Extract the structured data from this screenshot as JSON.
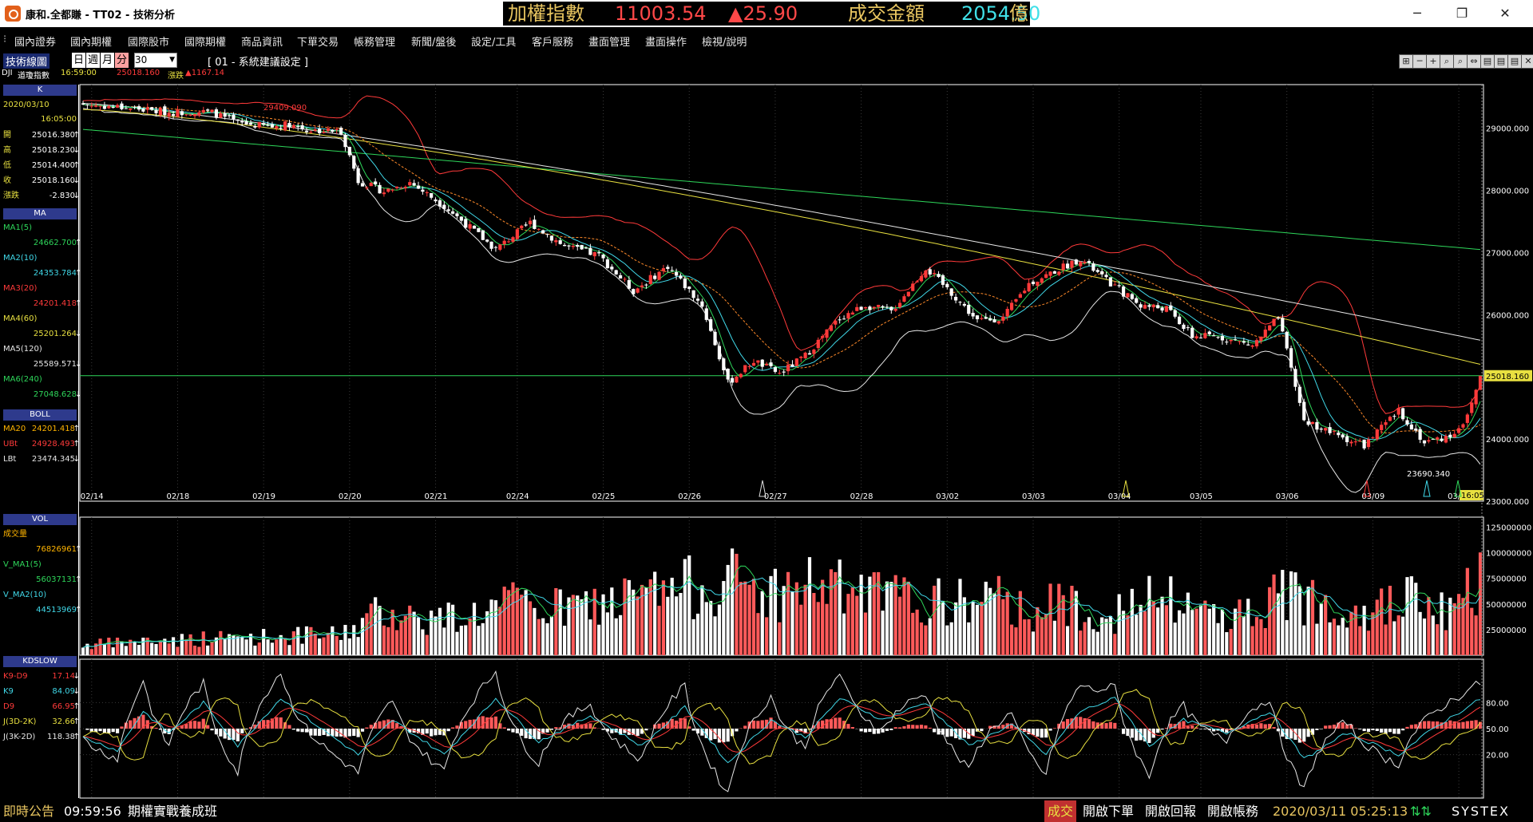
{
  "window": {
    "title": "康和.全都賺 - TT02 - 技術分析",
    "minimize": "─",
    "maximize": "❐",
    "close": "✕"
  },
  "ticker": {
    "label": "加權指數",
    "index": "11003.54",
    "change": "▲25.90",
    "turnover_label": "成交金額",
    "turnover": "2054.50",
    "unit": "億"
  },
  "menu": [
    "國內證券",
    "國內期權",
    "國際股市",
    "國際期權",
    "商品資訊",
    "下單交易",
    "帳務管理",
    "新聞/盤後",
    "設定/工具",
    "客戶服務",
    "畫面管理",
    "畫面操作",
    "檢視/說明"
  ],
  "toolbar": {
    "title": "技術線圖",
    "periods": [
      "日",
      "週",
      "月",
      "分"
    ],
    "count": "30",
    "setting": "[ 01 - 系統建議設定 ]"
  },
  "stock": {
    "code": "DJI",
    "name": "道瓊指數",
    "time": "16:59:00",
    "price": "25018.160",
    "change_label": "漲跌",
    "change": "▲1167.14"
  },
  "k_panel": {
    "title": "K",
    "date": "2020/03/10",
    "time": "16:05:00",
    "rows": [
      {
        "label": "開",
        "value": "25016.380",
        "arrow": "↑"
      },
      {
        "label": "高",
        "value": "25018.230",
        "arrow": "↓"
      },
      {
        "label": "低",
        "value": "25014.400",
        "arrow": "↑"
      },
      {
        "label": "收",
        "value": "25018.160",
        "arrow": "↓"
      },
      {
        "label": "漲跌",
        "value": "-2.830",
        "arrow": "↓"
      }
    ]
  },
  "ma_panel": {
    "title": "MA",
    "rows": [
      {
        "label": "MA1(5)",
        "value": "24662.700",
        "arrow": "↑",
        "color": "#2ed65a"
      },
      {
        "label": "MA2(10)",
        "value": "24353.784",
        "arrow": "↑",
        "color": "#40d8e8"
      },
      {
        "label": "MA3(20)",
        "value": "24201.418",
        "arrow": "↑",
        "color": "#ff3a3a"
      },
      {
        "label": "MA4(60)",
        "value": "25201.264",
        "arrow": "↓",
        "color": "#e8e040"
      },
      {
        "label": "MA5(120)",
        "value": "25589.571",
        "arrow": "↓",
        "color": "#e6e6e6"
      },
      {
        "label": "MA6(240)",
        "value": "27048.628",
        "arrow": "↓",
        "color": "#2ed65a"
      }
    ]
  },
  "boll_panel": {
    "title": "BOLL",
    "rows": [
      {
        "label": "MA20",
        "value": "24201.418",
        "arrow": "↑",
        "color": "#ffb400"
      },
      {
        "label": "UBt",
        "value": "24928.493",
        "arrow": "↑",
        "color": "#ff3a3a"
      },
      {
        "label": "LBt",
        "value": "23474.345",
        "arrow": "↓",
        "color": "#e6e6e6"
      }
    ]
  },
  "vol_panel": {
    "title": "VOL",
    "rows": [
      {
        "label": "成交量",
        "value": "76826961",
        "arrow": "↑",
        "color": "#ffb400"
      },
      {
        "label": "V_MA1(5)",
        "value": "56037131",
        "arrow": "↑",
        "color": "#2ed65a"
      },
      {
        "label": "V_MA2(10)",
        "value": "44513969",
        "arrow": "↑",
        "color": "#40d8e8"
      }
    ]
  },
  "kd_panel": {
    "title": "KDSLOW",
    "rows": [
      {
        "label": "K9-D9",
        "value": "17.14",
        "arrow": "↓",
        "color": "#ff3a3a"
      },
      {
        "label": "K9",
        "value": "84.09",
        "arrow": "↓",
        "color": "#40d8e8"
      },
      {
        "label": "D9",
        "value": "66.95",
        "arrow": "↑",
        "color": "#ff3a3a"
      },
      {
        "label": "J(3D-2K)",
        "value": "32.66",
        "arrow": "↑",
        "color": "#e8e040"
      },
      {
        "label": "J(3K-2D)",
        "value": "118.38",
        "arrow": "↑",
        "color": "#e6e6e6"
      }
    ]
  },
  "chart_data": {
    "type": "candlestick",
    "x_ticks": [
      "02/14",
      "02/18",
      "02/19",
      "02/20",
      "02/21",
      "02/24",
      "02/25",
      "02/26",
      "02/27",
      "02/28",
      "03/02",
      "03/03",
      "03/04",
      "03/05",
      "03/06",
      "03/09",
      "03/10"
    ],
    "price_axis": [
      "29000.000",
      "28000.000",
      "27000.000",
      "26000.000",
      "25018.160",
      "24000.000",
      "23000.000"
    ],
    "price_ylim": [
      23000,
      29700
    ],
    "high_label": "29409.090",
    "low_label": "23690.340",
    "last_price": "25018.160",
    "last_time": "16:05",
    "vol_axis": [
      "125000000",
      "100000000",
      "75000000",
      "50000000",
      "25000000"
    ],
    "vol_ylim": [
      0,
      130000000
    ],
    "kd_axis": [
      "80.00",
      "50.00",
      "20.00"
    ],
    "kd_ylim": [
      -30,
      130
    ],
    "close_anchors": [
      [
        0,
        29380
      ],
      [
        10,
        29330
      ],
      [
        20,
        29250
      ],
      [
        26,
        29270
      ],
      [
        30,
        29250
      ],
      [
        36,
        29080
      ],
      [
        44,
        29020
      ],
      [
        48,
        29070
      ],
      [
        52,
        28970
      ],
      [
        60,
        28950
      ],
      [
        64,
        28150
      ],
      [
        70,
        27980
      ],
      [
        76,
        28130
      ],
      [
        84,
        27750
      ],
      [
        96,
        27050
      ],
      [
        104,
        27480
      ],
      [
        112,
        27100
      ],
      [
        120,
        26950
      ],
      [
        128,
        26380
      ],
      [
        136,
        26780
      ],
      [
        144,
        26150
      ],
      [
        150,
        24900
      ],
      [
        156,
        25260
      ],
      [
        162,
        25050
      ],
      [
        168,
        25340
      ],
      [
        176,
        25950
      ],
      [
        182,
        26150
      ],
      [
        188,
        26050
      ],
      [
        196,
        26750
      ],
      [
        202,
        26350
      ],
      [
        208,
        25900
      ],
      [
        214,
        25950
      ],
      [
        220,
        26500
      ],
      [
        232,
        26900
      ],
      [
        238,
        26550
      ],
      [
        246,
        26150
      ],
      [
        252,
        26100
      ],
      [
        258,
        25650
      ],
      [
        264,
        25650
      ],
      [
        272,
        25500
      ],
      [
        278,
        25950
      ],
      [
        284,
        24300
      ],
      [
        292,
        24050
      ],
      [
        298,
        23900
      ],
      [
        306,
        24450
      ],
      [
        312,
        23950
      ],
      [
        318,
        24050
      ],
      [
        322,
        24350
      ],
      [
        325,
        25018
      ]
    ],
    "volume_anchors": [
      [
        0,
        10000000
      ],
      [
        20,
        15000000
      ],
      [
        40,
        18000000
      ],
      [
        60,
        20000000
      ],
      [
        70,
        45000000
      ],
      [
        80,
        35000000
      ],
      [
        90,
        40000000
      ],
      [
        100,
        50000000
      ],
      [
        110,
        45000000
      ],
      [
        120,
        50000000
      ],
      [
        140,
        65000000
      ],
      [
        150,
        75000000
      ],
      [
        160,
        60000000
      ],
      [
        170,
        70000000
      ],
      [
        180,
        60000000
      ],
      [
        190,
        55000000
      ],
      [
        200,
        50000000
      ],
      [
        210,
        55000000
      ],
      [
        220,
        45000000
      ],
      [
        230,
        50000000
      ],
      [
        240,
        40000000
      ],
      [
        250,
        55000000
      ],
      [
        260,
        45000000
      ],
      [
        270,
        40000000
      ],
      [
        280,
        60000000
      ],
      [
        290,
        55000000
      ],
      [
        300,
        45000000
      ],
      [
        310,
        55000000
      ],
      [
        318,
        40000000
      ],
      [
        325,
        76826961
      ]
    ],
    "kd_k_anchors": [
      [
        0,
        40
      ],
      [
        8,
        25
      ],
      [
        14,
        70
      ],
      [
        20,
        45
      ],
      [
        28,
        80
      ],
      [
        36,
        30
      ],
      [
        46,
        85
      ],
      [
        54,
        55
      ],
      [
        64,
        20
      ],
      [
        72,
        60
      ],
      [
        84,
        20
      ],
      [
        96,
        85
      ],
      [
        106,
        35
      ],
      [
        118,
        65
      ],
      [
        130,
        30
      ],
      [
        140,
        75
      ],
      [
        150,
        10
      ],
      [
        160,
        60
      ],
      [
        168,
        40
      ],
      [
        176,
        85
      ],
      [
        186,
        60
      ],
      [
        196,
        80
      ],
      [
        206,
        30
      ],
      [
        216,
        55
      ],
      [
        224,
        20
      ],
      [
        232,
        70
      ],
      [
        240,
        85
      ],
      [
        248,
        30
      ],
      [
        256,
        60
      ],
      [
        266,
        45
      ],
      [
        276,
        70
      ],
      [
        284,
        15
      ],
      [
        294,
        45
      ],
      [
        306,
        20
      ],
      [
        314,
        50
      ],
      [
        325,
        84
      ]
    ],
    "ma_series": [
      "MA1(5)",
      "MA2(10)",
      "MA3(20)",
      "MA4(60)",
      "MA5(120)",
      "MA6(240)"
    ]
  },
  "status": {
    "news_label": "即時公告",
    "time": "09:59:56",
    "headline": "期權實戰養成班",
    "trade_label": "成交",
    "order": "開啟下單",
    "report": "開啟回報",
    "account": "開啟帳務",
    "datetime": "2020/03/11 05:25:13",
    "brand": "SYSTEX"
  }
}
